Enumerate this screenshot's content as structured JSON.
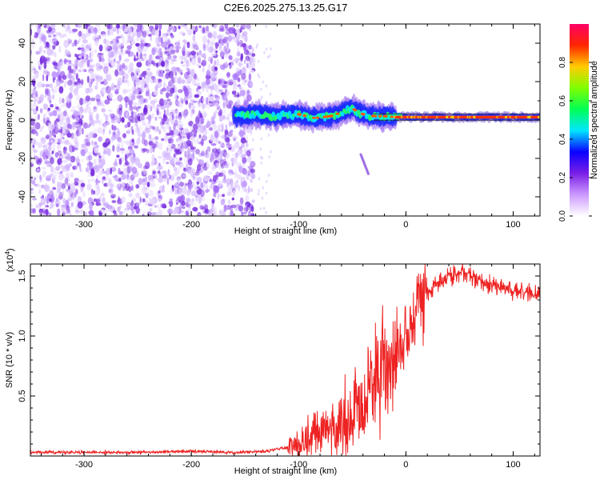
{
  "chart_data": [
    {
      "type": "heatmap",
      "title": "C2E6.2025.275.13.25.G17",
      "xlabel": "Height of straight line (km)",
      "ylabel": "Frequency (Hz)",
      "xlim": [
        -350,
        125
      ],
      "ylim": [
        -50,
        50
      ],
      "xticks": [
        {
          "value": -300,
          "label": "-300"
        },
        {
          "value": -200,
          "label": "-200"
        },
        {
          "value": -100,
          "label": "-100"
        },
        {
          "value": 0,
          "label": "0"
        },
        {
          "value": 100,
          "label": "100"
        }
      ],
      "yticks": [
        {
          "value": -40,
          "label": "-40"
        },
        {
          "value": -20,
          "label": "-20"
        },
        {
          "value": 0,
          "label": "0"
        },
        {
          "value": 20,
          "label": "20"
        },
        {
          "value": 40,
          "label": "40"
        }
      ],
      "colorbar": {
        "label": "Normalized spectral amplitude",
        "range": [
          0,
          1
        ],
        "ticks": [
          {
            "value": 0.0,
            "label": "0.0"
          },
          {
            "value": 0.2,
            "label": "0.2"
          },
          {
            "value": 0.4,
            "label": "0.4"
          },
          {
            "value": 0.6,
            "label": "0.6"
          },
          {
            "value": 0.8,
            "label": "0.8"
          }
        ],
        "colors": [
          "#ffffff",
          "#cc99ff",
          "#7a1fe6",
          "#0a00ff",
          "#00e6ff",
          "#00ff55",
          "#7fff00",
          "#ffcc00",
          "#ff2600",
          "#ff0066"
        ]
      },
      "regions": {
        "noise_x_range": [
          -350,
          -150
        ],
        "signal_track": [
          {
            "x": -160,
            "f": 2
          },
          {
            "x": -140,
            "f": 3
          },
          {
            "x": -120,
            "f": 2
          },
          {
            "x": -100,
            "f": 3
          },
          {
            "x": -85,
            "f": 1
          },
          {
            "x": -70,
            "f": 2
          },
          {
            "x": -60,
            "f": 4
          },
          {
            "x": -50,
            "f": 6
          },
          {
            "x": -40,
            "f": 3
          },
          {
            "x": -30,
            "f": 2
          },
          {
            "x": -20,
            "f": 2
          },
          {
            "x": -10,
            "f": 1.5
          },
          {
            "x": 0,
            "f": 1.5
          },
          {
            "x": 50,
            "f": 1.5
          },
          {
            "x": 100,
            "f": 1.5
          },
          {
            "x": 125,
            "f": 1.5
          }
        ],
        "side_streak": [
          {
            "x": -42,
            "f": -18
          },
          {
            "x": -35,
            "f": -28
          }
        ]
      }
    },
    {
      "type": "line",
      "xlabel": "Height of straight line (km)",
      "ylabel": "SNR (10 * v/v)",
      "scale_label": "(x10",
      "scale_exponent": "4",
      "scale_close": ")",
      "xlim": [
        -350,
        125
      ],
      "ylim": [
        0,
        1.6
      ],
      "xticks": [
        {
          "value": -300,
          "label": "-300"
        },
        {
          "value": -200,
          "label": "-200"
        },
        {
          "value": -100,
          "label": "-100"
        },
        {
          "value": 0,
          "label": "0"
        },
        {
          "value": 100,
          "label": "100"
        }
      ],
      "yticks": [
        {
          "value": 0.5,
          "label": "0.5"
        },
        {
          "value": 1.0,
          "label": "1.0"
        },
        {
          "value": 1.5,
          "label": "1.5"
        }
      ],
      "color": "#ee2222",
      "series": [
        {
          "name": "SNR",
          "x": [
            -350,
            -300,
            -250,
            -200,
            -160,
            -130,
            -110,
            -100,
            -90,
            -80,
            -70,
            -60,
            -50,
            -40,
            -30,
            -20,
            -10,
            0,
            10,
            20,
            30,
            40,
            50,
            60,
            70,
            80,
            90,
            100,
            110,
            120,
            125
          ],
          "y": [
            0.03,
            0.03,
            0.03,
            0.04,
            0.03,
            0.04,
            0.07,
            0.1,
            0.15,
            0.18,
            0.2,
            0.22,
            0.28,
            0.4,
            0.5,
            0.65,
            0.85,
            1.05,
            1.2,
            1.35,
            1.45,
            1.5,
            1.52,
            1.5,
            1.45,
            1.42,
            1.4,
            1.38,
            1.36,
            1.34,
            1.35
          ]
        }
      ]
    }
  ]
}
